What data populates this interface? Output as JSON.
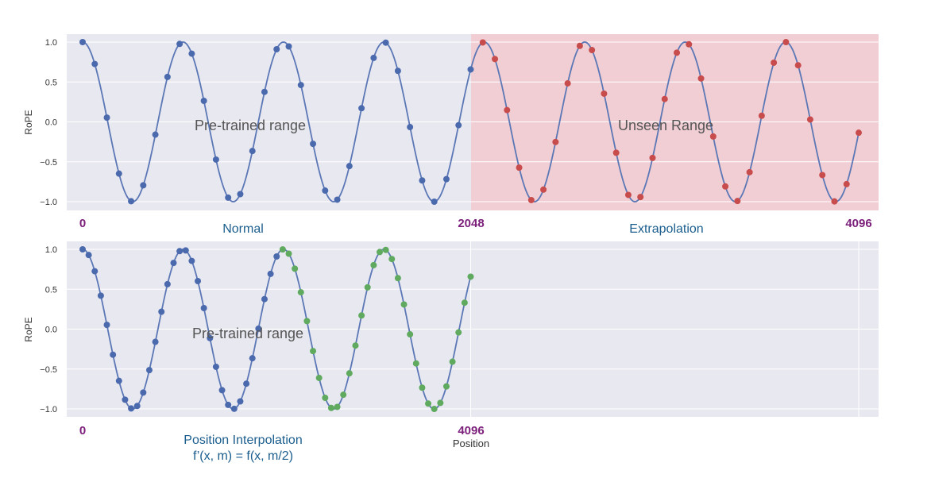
{
  "colors": {
    "panel_bg": "#e8e8f1",
    "grid": "#ffffff",
    "curve": "#5b77b5",
    "normal_dots": "#4b6aad",
    "extrapolation_dots": "#c84c4c",
    "interpolation_dots": "#5faa5f",
    "unseen_shade": "#f2c9cf",
    "position_labels": "#7b1f7b",
    "captions": "#1b5e8e"
  },
  "chart_data": [
    {
      "type": "scatter",
      "ylabel": "RoPE",
      "ylim": [
        -1.05,
        1.05
      ],
      "yticks": [
        "1.0",
        "0.5",
        "0.0",
        "−0.5",
        "−1.0"
      ],
      "ytick_values": [
        1.0,
        0.5,
        0.0,
        -0.5,
        -1.0
      ],
      "xlim": [
        0,
        4096
      ],
      "grid": true,
      "curve": {
        "function": "cos",
        "period": 530
      },
      "series": [
        {
          "role": "normal",
          "x_start": 0,
          "x_end": 2048,
          "step": 64
        },
        {
          "role": "extrapolation",
          "x_start": 2048,
          "x_end": 4096,
          "step": 64
        }
      ],
      "shaded_region": [
        2048,
        4096
      ],
      "annotations": {
        "left_region": "Pre-trained range",
        "right_region": "Unseen Range"
      },
      "position_labels": [
        "0",
        "2048",
        "4096"
      ],
      "position_values": [
        0,
        2048,
        4096
      ],
      "captions": {
        "left": "Normal",
        "right": "Extrapolation"
      }
    },
    {
      "type": "scatter",
      "ylabel": "RoPE",
      "ylim": [
        -1.05,
        1.05
      ],
      "yticks": [
        "1.0",
        "0.5",
        "0.0",
        "−0.5",
        "−1.0"
      ],
      "ytick_values": [
        1.0,
        0.5,
        0.0,
        -0.5,
        -1.0
      ],
      "xlim": [
        0,
        4096
      ],
      "grid": true,
      "curve": {
        "function": "cos",
        "period": 530
      },
      "series": [
        {
          "role": "original",
          "x_start": 0,
          "x_end": 1024,
          "step": 32
        },
        {
          "role": "interpolated",
          "x_start": 1024,
          "x_end": 2048,
          "step": 32
        }
      ],
      "annotations": {
        "left_region": "Pre-trained range"
      },
      "position_labels": [
        "0",
        "4096"
      ],
      "position_values": [
        0,
        2048
      ],
      "xlabel": "Position",
      "captions": {
        "title": "Position Interpolation",
        "formula": "f’(x, m) = f(x, m/2)"
      }
    }
  ]
}
